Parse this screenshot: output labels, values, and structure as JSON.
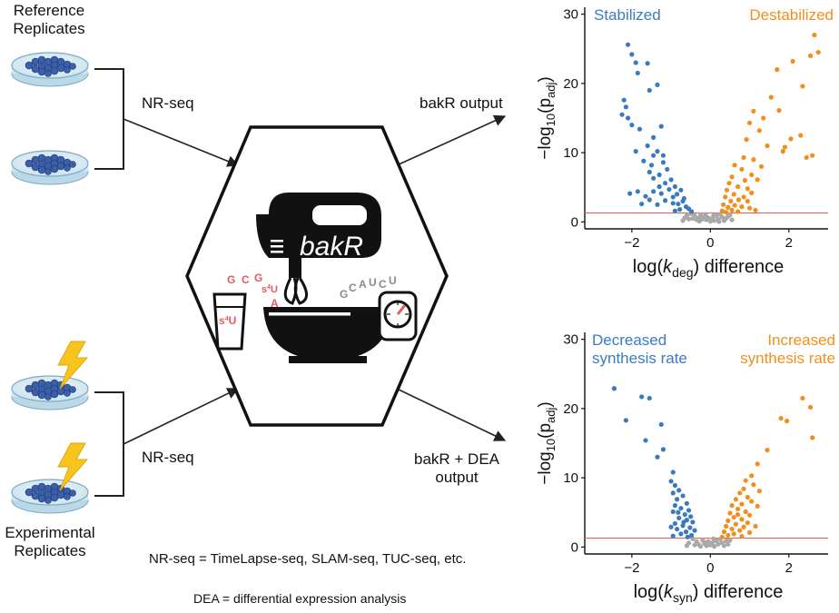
{
  "left": {
    "reference_label": "Reference\nReplicates",
    "experimental_label": "Experimental\nReplicates",
    "nrseq_top": "NR-seq",
    "nrseq_bottom": "NR-seq"
  },
  "center": {
    "logo_text": "bakR",
    "letters_left": [
      "G",
      "C",
      "G",
      "s4U",
      "A"
    ],
    "letters_right": [
      "G",
      "C",
      "A",
      "U",
      "C",
      "U"
    ],
    "cup_label": "s4U",
    "colors": {
      "red": "#e8595c",
      "gray": "#8a8a8a",
      "black": "#111111"
    }
  },
  "arrows": {
    "out_top": "bakR output",
    "out_bottom": "bakR + DEA\noutput"
  },
  "footnotes": {
    "nrseq_def": "NR-seq = TimeLapse-seq, SLAM-seq, TUC-seq, etc.",
    "dea_def": "DEA = differential expression analysis"
  },
  "chart_data": [
    {
      "type": "scatter",
      "xlabel_prefix": "log(",
      "xlabel_var": "k",
      "xlabel_sub": "deg",
      "xlabel_suffix": ") difference",
      "ylabel": "−log10(padj)",
      "xlim": [
        -3.2,
        3.0
      ],
      "ylim": [
        -1,
        31
      ],
      "xticks": [
        -2,
        0,
        2
      ],
      "yticks": [
        0,
        10,
        20,
        30
      ],
      "threshold": 1.3,
      "threshold_color": "#e8595c",
      "left_annotation": [
        "Stabilized"
      ],
      "right_annotation": [
        "Destabilized"
      ],
      "series": [
        {
          "color": "#3a7bbf",
          "points": [
            [
              -2.1,
              25.6
            ],
            [
              -2.0,
              24.2
            ],
            [
              -1.9,
              23.0
            ],
            [
              -1.85,
              21.5
            ],
            [
              -1.6,
              22.9
            ],
            [
              -1.55,
              19.0
            ],
            [
              -1.35,
              19.8
            ],
            [
              -2.2,
              17.6
            ],
            [
              -2.15,
              16.6
            ],
            [
              -2.25,
              15.5
            ],
            [
              -2.1,
              15.0
            ],
            [
              -2.0,
              14.0
            ],
            [
              -1.8,
              13.4
            ],
            [
              -1.45,
              12.2
            ],
            [
              -1.25,
              13.8
            ],
            [
              -1.6,
              11.0
            ],
            [
              -1.9,
              10.2
            ],
            [
              -1.45,
              9.6
            ],
            [
              -1.35,
              10.2
            ],
            [
              -1.2,
              9.6
            ],
            [
              -1.7,
              8.8
            ],
            [
              -1.5,
              8.2
            ],
            [
              -1.2,
              8.6
            ],
            [
              -1.1,
              7.6
            ],
            [
              -1.55,
              7.2
            ],
            [
              -1.45,
              6.3
            ],
            [
              -1.3,
              6.8
            ],
            [
              -1.0,
              6.1
            ],
            [
              -1.15,
              5.6
            ],
            [
              -0.9,
              5.1
            ],
            [
              -1.3,
              5.1
            ],
            [
              -2.05,
              4.1
            ],
            [
              -1.85,
              4.4
            ],
            [
              -1.65,
              3.7
            ],
            [
              -1.45,
              4.4
            ],
            [
              -1.25,
              4.1
            ],
            [
              -1.05,
              4.7
            ],
            [
              -0.95,
              3.6
            ],
            [
              -0.85,
              4.0
            ],
            [
              -0.75,
              4.6
            ],
            [
              -1.75,
              2.6
            ],
            [
              -1.15,
              3.1
            ],
            [
              -0.95,
              2.7
            ],
            [
              -0.82,
              2.6
            ],
            [
              -0.7,
              3.0
            ],
            [
              -0.62,
              2.2
            ],
            [
              -0.55,
              1.9
            ],
            [
              -0.78,
              1.8
            ],
            [
              -0.9,
              1.6
            ],
            [
              -0.48,
              1.5
            ],
            [
              -1.55,
              3.2
            ],
            [
              -1.35,
              2.5
            ],
            [
              -0.67,
              3.4
            ]
          ]
        },
        {
          "color": "#f28e1c",
          "points": [
            [
              2.65,
              27.0
            ],
            [
              2.75,
              24.5
            ],
            [
              2.55,
              24.0
            ],
            [
              2.1,
              23.2
            ],
            [
              1.7,
              22.0
            ],
            [
              2.35,
              19.6
            ],
            [
              1.55,
              18.0
            ],
            [
              1.1,
              16.0
            ],
            [
              1.75,
              16.1
            ],
            [
              1.35,
              15.0
            ],
            [
              1.0,
              14.3
            ],
            [
              1.25,
              13.2
            ],
            [
              2.05,
              12.0
            ],
            [
              2.3,
              12.5
            ],
            [
              0.92,
              11.9
            ],
            [
              1.45,
              11.0
            ],
            [
              1.9,
              10.8
            ],
            [
              1.85,
              10.2
            ],
            [
              2.6,
              9.6
            ],
            [
              2.45,
              9.3
            ],
            [
              0.85,
              9.3
            ],
            [
              1.1,
              9.0
            ],
            [
              0.62,
              8.2
            ],
            [
              1.3,
              8.0
            ],
            [
              0.8,
              7.6
            ],
            [
              1.05,
              6.8
            ],
            [
              0.55,
              6.5
            ],
            [
              0.88,
              6.0
            ],
            [
              0.48,
              5.6
            ],
            [
              1.2,
              6.1
            ],
            [
              0.7,
              5.1
            ],
            [
              0.95,
              4.8
            ],
            [
              0.42,
              4.6
            ],
            [
              1.05,
              4.2
            ],
            [
              0.6,
              4.0
            ],
            [
              0.85,
              3.6
            ],
            [
              0.38,
              3.6
            ],
            [
              0.72,
              3.2
            ],
            [
              0.52,
              3.0
            ],
            [
              0.95,
              3.0
            ],
            [
              0.33,
              2.5
            ],
            [
              0.62,
              2.4
            ],
            [
              0.8,
              2.2
            ],
            [
              0.45,
              2.1
            ],
            [
              1.0,
              2.0
            ],
            [
              0.55,
              1.7
            ],
            [
              0.3,
              1.6
            ],
            [
              0.7,
              1.5
            ],
            [
              1.15,
              1.7
            ],
            [
              0.4,
              1.4
            ]
          ]
        },
        {
          "color": "#a9a9a9",
          "points": [
            [
              -0.5,
              1.2
            ],
            [
              -0.4,
              0.9
            ],
            [
              -0.3,
              0.6
            ],
            [
              -0.25,
              1.0
            ],
            [
              -0.2,
              0.4
            ],
            [
              -0.15,
              0.8
            ],
            [
              -0.1,
              0.3
            ],
            [
              -0.05,
              0.6
            ],
            [
              0.0,
              0.1
            ],
            [
              0.05,
              0.5
            ],
            [
              0.1,
              0.2
            ],
            [
              0.15,
              0.9
            ],
            [
              0.2,
              0.4
            ],
            [
              0.25,
              1.1
            ],
            [
              0.3,
              0.7
            ],
            [
              -0.35,
              0.3
            ],
            [
              -0.45,
              0.5
            ],
            [
              0.35,
              0.2
            ],
            [
              0.45,
              0.8
            ],
            [
              0.5,
              1.0
            ],
            [
              -0.6,
              0.9
            ],
            [
              -0.55,
              0.4
            ],
            [
              0.55,
              0.3
            ],
            [
              -0.12,
              1.1
            ],
            [
              0.08,
              0.9
            ],
            [
              -0.28,
              0.1
            ],
            [
              0.22,
              0.05
            ],
            [
              -0.02,
              0.35
            ],
            [
              0.4,
              0.5
            ],
            [
              -0.65,
              0.6
            ],
            [
              -0.7,
              0.2
            ]
          ]
        }
      ]
    },
    {
      "type": "scatter",
      "xlabel_prefix": "log(",
      "xlabel_var": "k",
      "xlabel_sub": "syn",
      "xlabel_suffix": ") difference",
      "ylabel": "−log10(padj)",
      "xlim": [
        -3.2,
        3.0
      ],
      "ylim": [
        -1,
        31
      ],
      "xticks": [
        -2,
        0,
        2
      ],
      "yticks": [
        0,
        10,
        20,
        30
      ],
      "threshold": 1.3,
      "threshold_color": "#e8595c",
      "left_annotation": [
        "Decreased",
        "synthesis rate"
      ],
      "right_annotation": [
        "Increased",
        "synthesis rate"
      ],
      "series": [
        {
          "color": "#3a7bbf",
          "points": [
            [
              -2.45,
              22.9
            ],
            [
              -2.15,
              18.3
            ],
            [
              -1.75,
              21.7
            ],
            [
              -1.55,
              21.5
            ],
            [
              -1.65,
              15.4
            ],
            [
              -1.25,
              17.7
            ],
            [
              -1.2,
              14.1
            ],
            [
              -1.35,
              13.0
            ],
            [
              -0.95,
              10.8
            ],
            [
              -1.0,
              9.5
            ],
            [
              -0.9,
              8.9
            ],
            [
              -0.8,
              8.2
            ],
            [
              -0.95,
              7.8
            ],
            [
              -0.7,
              7.4
            ],
            [
              -0.85,
              6.9
            ],
            [
              -0.6,
              6.3
            ],
            [
              -0.9,
              6.0
            ],
            [
              -0.75,
              5.6
            ],
            [
              -0.55,
              5.3
            ],
            [
              -0.95,
              5.1
            ],
            [
              -0.65,
              4.7
            ],
            [
              -0.5,
              4.4
            ],
            [
              -0.8,
              4.2
            ],
            [
              -0.6,
              3.9
            ],
            [
              -0.45,
              3.6
            ],
            [
              -0.9,
              3.4
            ],
            [
              -0.7,
              3.1
            ],
            [
              -0.52,
              2.8
            ],
            [
              -0.85,
              2.6
            ],
            [
              -0.4,
              2.4
            ],
            [
              -0.62,
              2.2
            ],
            [
              -0.75,
              1.9
            ],
            [
              -0.48,
              1.7
            ],
            [
              -0.95,
              1.6
            ],
            [
              -0.58,
              1.45
            ],
            [
              -1.0,
              2.9
            ],
            [
              -0.68,
              3.6
            ],
            [
              -0.82,
              5.0
            ]
          ]
        },
        {
          "color": "#f28e1c",
          "points": [
            [
              2.35,
              21.5
            ],
            [
              2.55,
              20.2
            ],
            [
              1.8,
              18.6
            ],
            [
              1.95,
              18.2
            ],
            [
              2.6,
              15.8
            ],
            [
              1.45,
              14.0
            ],
            [
              1.2,
              12.0
            ],
            [
              1.05,
              10.3
            ],
            [
              0.9,
              9.6
            ],
            [
              1.1,
              9.0
            ],
            [
              0.85,
              8.4
            ],
            [
              1.25,
              8.1
            ],
            [
              0.75,
              7.8
            ],
            [
              0.95,
              7.2
            ],
            [
              0.65,
              6.9
            ],
            [
              1.05,
              6.6
            ],
            [
              0.8,
              6.2
            ],
            [
              0.55,
              6.0
            ],
            [
              1.2,
              5.9
            ],
            [
              0.7,
              5.5
            ],
            [
              0.9,
              5.1
            ],
            [
              0.5,
              4.9
            ],
            [
              1.0,
              4.6
            ],
            [
              0.6,
              4.3
            ],
            [
              0.8,
              4.0
            ],
            [
              0.45,
              3.8
            ],
            [
              0.95,
              3.5
            ],
            [
              0.65,
              3.3
            ],
            [
              0.4,
              3.0
            ],
            [
              0.85,
              2.9
            ],
            [
              0.55,
              2.6
            ],
            [
              0.75,
              2.4
            ],
            [
              0.35,
              2.2
            ],
            [
              1.0,
              2.1
            ],
            [
              0.6,
              1.9
            ],
            [
              0.45,
              1.7
            ],
            [
              0.8,
              1.55
            ],
            [
              0.3,
              1.45
            ],
            [
              1.15,
              3.0
            ],
            [
              0.7,
              4.7
            ]
          ]
        },
        {
          "color": "#a9a9a9",
          "points": [
            [
              -0.45,
              1.2
            ],
            [
              -0.35,
              0.8
            ],
            [
              -0.3,
              0.4
            ],
            [
              -0.2,
              1.0
            ],
            [
              -0.15,
              0.5
            ],
            [
              -0.1,
              0.2
            ],
            [
              -0.05,
              0.8
            ],
            [
              0.0,
              0.3
            ],
            [
              0.05,
              0.6
            ],
            [
              0.1,
              0.1
            ],
            [
              0.15,
              0.9
            ],
            [
              0.2,
              0.4
            ],
            [
              0.25,
              1.1
            ],
            [
              0.3,
              0.6
            ],
            [
              -0.4,
              0.3
            ],
            [
              0.35,
              0.2
            ],
            [
              0.4,
              0.9
            ],
            [
              -0.55,
              0.6
            ],
            [
              0.45,
              0.4
            ],
            [
              -0.25,
              0.1
            ],
            [
              0.08,
              1.2
            ],
            [
              -0.12,
              0.65
            ],
            [
              0.5,
              1.0
            ],
            [
              -0.6,
              0.2
            ]
          ]
        }
      ]
    }
  ]
}
